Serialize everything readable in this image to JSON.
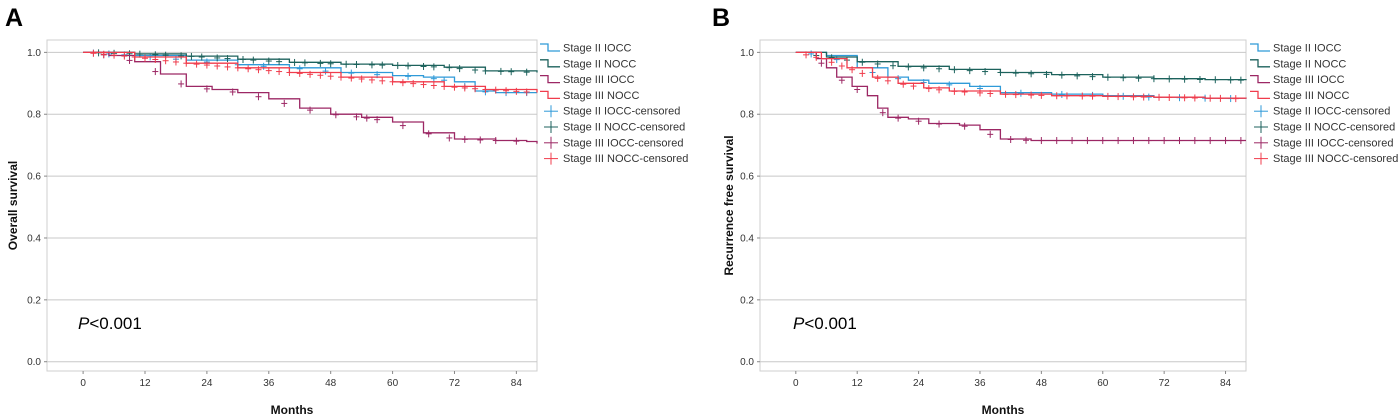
{
  "chart_data": [
    {
      "panel_label": "A",
      "type": "line",
      "title": "",
      "xlabel": "Months",
      "ylabel": "Overall survival",
      "xlim": [
        -7,
        88
      ],
      "ylim": [
        -0.03,
        1.04
      ],
      "x_ticks": [
        "0",
        "12",
        "24",
        "36",
        "48",
        "60",
        "72",
        "84"
      ],
      "y_ticks": [
        "0.0",
        "0.2",
        "0.4",
        "0.6",
        "0.8",
        "1.0"
      ],
      "grid": "horizontal",
      "annotation": {
        "italic": "P",
        "text": "<0.001"
      },
      "legend_position": "right",
      "legend": [
        "Stage II IOCC",
        "Stage II NOCC",
        "Stage III IOCC",
        "Stage III NOCC",
        "Stage II IOCC-censored",
        "Stage II NOCC-censored",
        "Stage III IOCC-censored",
        "Stage III NOCC-censored"
      ],
      "series": [
        {
          "name": "Stage II IOCC",
          "color": "#2f9ad8",
          "points": [
            [
              0,
              1.0
            ],
            [
              10,
              0.99
            ],
            [
              20,
              0.975
            ],
            [
              30,
              0.96
            ],
            [
              40,
              0.95
            ],
            [
              50,
              0.935
            ],
            [
              60,
              0.925
            ],
            [
              66,
              0.92
            ],
            [
              72,
              0.905
            ],
            [
              76,
              0.875
            ],
            [
              80,
              0.87
            ],
            [
              88,
              0.87
            ]
          ],
          "censor": [
            2,
            5,
            8,
            13,
            18,
            24,
            30,
            35,
            42,
            47,
            52,
            57,
            63,
            68,
            70,
            74,
            78,
            82,
            86
          ]
        },
        {
          "name": "Stage II NOCC",
          "color": "#1c625c",
          "points": [
            [
              0,
              1.0
            ],
            [
              10,
              0.995
            ],
            [
              20,
              0.988
            ],
            [
              30,
              0.978
            ],
            [
              40,
              0.968
            ],
            [
              50,
              0.962
            ],
            [
              60,
              0.958
            ],
            [
              70,
              0.952
            ],
            [
              78,
              0.94
            ],
            [
              88,
              0.935
            ]
          ],
          "censor": [
            3,
            6,
            9,
            11,
            14,
            16,
            19,
            21,
            23,
            26,
            28,
            31,
            33,
            36,
            38,
            41,
            43,
            46,
            48,
            51,
            53,
            56,
            58,
            61,
            63,
            66,
            68,
            71,
            73,
            76,
            78,
            81,
            83,
            86
          ]
        },
        {
          "name": "Stage III IOCC",
          "color": "#9c2764",
          "points": [
            [
              0,
              1.0
            ],
            [
              5,
              0.99
            ],
            [
              10,
              0.97
            ],
            [
              15,
              0.93
            ],
            [
              20,
              0.89
            ],
            [
              25,
              0.88
            ],
            [
              30,
              0.87
            ],
            [
              36,
              0.85
            ],
            [
              42,
              0.82
            ],
            [
              48,
              0.8
            ],
            [
              54,
              0.79
            ],
            [
              60,
              0.775
            ],
            [
              66,
              0.74
            ],
            [
              72,
              0.72
            ],
            [
              80,
              0.715
            ],
            [
              86,
              0.712
            ],
            [
              88,
              0.705
            ]
          ],
          "censor": [
            4,
            9,
            14,
            19,
            24,
            29,
            34,
            39,
            44,
            49,
            53,
            55,
            57,
            62,
            67,
            71,
            74,
            77,
            80,
            84
          ]
        },
        {
          "name": "Stage III NOCC",
          "color": "#f03c4c",
          "points": [
            [
              0,
              1.0
            ],
            [
              10,
              0.985
            ],
            [
              20,
              0.965
            ],
            [
              30,
              0.95
            ],
            [
              40,
              0.935
            ],
            [
              50,
              0.92
            ],
            [
              60,
              0.905
            ],
            [
              70,
              0.89
            ],
            [
              78,
              0.88
            ],
            [
              88,
              0.87
            ]
          ],
          "censor": [
            2,
            4,
            6,
            8,
            10,
            12,
            14,
            16,
            18,
            20,
            22,
            24,
            26,
            28,
            30,
            32,
            34,
            36,
            38,
            40,
            42,
            44,
            46,
            48,
            50,
            52,
            54,
            56,
            58,
            60,
            62,
            64,
            66,
            68,
            70,
            72,
            74,
            76,
            78,
            80,
            82,
            84,
            86
          ]
        }
      ]
    },
    {
      "panel_label": "B",
      "type": "line",
      "title": "",
      "xlabel": "Months",
      "ylabel": "Recurrence free survival",
      "xlim": [
        -7,
        88
      ],
      "ylim": [
        -0.03,
        1.04
      ],
      "x_ticks": [
        "0",
        "12",
        "24",
        "36",
        "48",
        "60",
        "72",
        "84"
      ],
      "y_ticks": [
        "0.0",
        "0.2",
        "0.4",
        "0.6",
        "0.8",
        "1.0"
      ],
      "grid": "horizontal",
      "annotation": {
        "italic": "P",
        "text": "<0.001"
      },
      "legend_position": "right",
      "legend": [
        "Stage II IOCC",
        "Stage II NOCC",
        "Stage III IOCC",
        "Stage III NOCC",
        "Stage II IOCC-censored",
        "Stage II NOCC-censored",
        "Stage III IOCC-censored",
        "Stage III NOCC-censored"
      ],
      "series": [
        {
          "name": "Stage II IOCC",
          "color": "#2f9ad8",
          "points": [
            [
              0,
              1.0
            ],
            [
              6,
              0.99
            ],
            [
              12,
              0.95
            ],
            [
              18,
              0.92
            ],
            [
              22,
              0.91
            ],
            [
              26,
              0.9
            ],
            [
              34,
              0.89
            ],
            [
              40,
              0.87
            ],
            [
              50,
              0.865
            ],
            [
              60,
              0.86
            ],
            [
              70,
              0.855
            ],
            [
              80,
              0.852
            ],
            [
              88,
              0.85
            ]
          ],
          "censor": [
            3,
            8,
            15,
            20,
            25,
            30,
            36,
            44,
            52,
            58,
            64,
            69,
            75,
            80,
            85
          ]
        },
        {
          "name": "Stage II NOCC",
          "color": "#1c625c",
          "points": [
            [
              0,
              1.0
            ],
            [
              6,
              0.985
            ],
            [
              12,
              0.97
            ],
            [
              20,
              0.955
            ],
            [
              30,
              0.945
            ],
            [
              40,
              0.935
            ],
            [
              50,
              0.928
            ],
            [
              60,
              0.92
            ],
            [
              70,
              0.915
            ],
            [
              80,
              0.912
            ],
            [
              88,
              0.91
            ]
          ],
          "censor": [
            4,
            7,
            10,
            13,
            16,
            19,
            22,
            25,
            28,
            31,
            34,
            37,
            40,
            43,
            46,
            49,
            52,
            55,
            58,
            61,
            64,
            67,
            70,
            73,
            76,
            79,
            82,
            85,
            87
          ]
        },
        {
          "name": "Stage III IOCC",
          "color": "#9c2764",
          "points": [
            [
              0,
              1.0
            ],
            [
              4,
              0.98
            ],
            [
              6,
              0.95
            ],
            [
              8,
              0.92
            ],
            [
              11,
              0.89
            ],
            [
              14,
              0.86
            ],
            [
              16,
              0.82
            ],
            [
              18,
              0.79
            ],
            [
              22,
              0.785
            ],
            [
              26,
              0.77
            ],
            [
              32,
              0.765
            ],
            [
              36,
              0.75
            ],
            [
              40,
              0.72
            ],
            [
              46,
              0.715
            ],
            [
              88,
              0.715
            ]
          ],
          "censor": [
            5,
            9,
            12,
            17,
            20,
            24,
            28,
            33,
            38,
            42,
            45,
            48,
            51,
            54,
            57,
            60,
            63,
            66,
            69,
            72,
            75,
            78,
            81,
            84,
            87
          ]
        },
        {
          "name": "Stage III NOCC",
          "color": "#f03c4c",
          "points": [
            [
              0,
              1.0
            ],
            [
              5,
              0.98
            ],
            [
              10,
              0.95
            ],
            [
              15,
              0.92
            ],
            [
              20,
              0.9
            ],
            [
              25,
              0.885
            ],
            [
              30,
              0.875
            ],
            [
              40,
              0.865
            ],
            [
              50,
              0.86
            ],
            [
              60,
              0.858
            ],
            [
              70,
              0.855
            ],
            [
              80,
              0.852
            ],
            [
              88,
              0.85
            ]
          ],
          "censor": [
            2,
            4,
            7,
            9,
            11,
            13,
            16,
            18,
            21,
            23,
            26,
            28,
            31,
            33,
            36,
            38,
            41,
            43,
            46,
            48,
            51,
            53,
            56,
            58,
            61,
            63,
            66,
            68,
            71,
            73,
            76,
            78,
            81,
            83,
            86
          ]
        }
      ]
    }
  ]
}
